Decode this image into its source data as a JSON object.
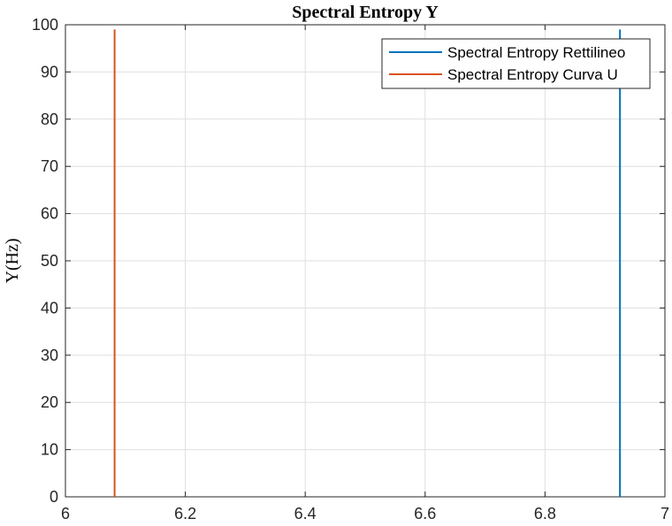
{
  "chart_data": {
    "type": "line",
    "title": "Spectral Entropy Y",
    "xlabel": "",
    "ylabel": "Y(Hz)",
    "xlim": [
      6,
      7
    ],
    "ylim": [
      0,
      100
    ],
    "xticks": [
      6,
      6.2,
      6.4,
      6.6,
      6.8,
      7
    ],
    "xtick_labels": [
      "6",
      "6.2",
      "6.4",
      "6.6",
      "6.8",
      "7"
    ],
    "yticks": [
      0,
      10,
      20,
      30,
      40,
      50,
      60,
      70,
      80,
      90,
      100
    ],
    "ytick_labels": [
      "0",
      "10",
      "20",
      "30",
      "40",
      "50",
      "60",
      "70",
      "80",
      "90",
      "100"
    ],
    "grid": true,
    "legend_position": "top-right",
    "series": [
      {
        "name": "Spectral Entropy Rettilineo",
        "color": "#0072BD",
        "x": [
          6.925,
          6.925
        ],
        "y": [
          0,
          99
        ]
      },
      {
        "name": "Spectral Entropy Curva U",
        "color": "#D95319",
        "x": [
          6.082,
          6.082
        ],
        "y": [
          0,
          99
        ]
      }
    ]
  }
}
